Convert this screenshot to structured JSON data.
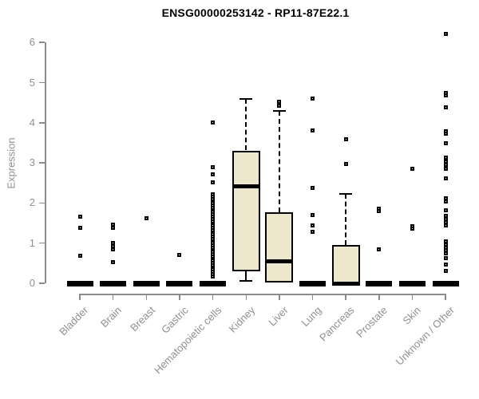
{
  "chart_data": {
    "type": "boxplot",
    "title": "ENSG00000253142 - RP11-87E22.1",
    "ylabel": "Expression",
    "ylim": [
      0,
      6.5
    ],
    "yticks": [
      0,
      1,
      2,
      3,
      4,
      5,
      6
    ],
    "grid": false,
    "legend": null,
    "colors": {
      "box_fill": "#ECE7CD",
      "box_border": "#000000",
      "axis": "#8C8C8C",
      "labels": "#909090",
      "title": "#000000"
    },
    "categories": [
      "Bladder",
      "Brain",
      "Breast",
      "Gastric",
      "Hematopoietic cells",
      "Kidney",
      "Liver",
      "Lung",
      "Pancreas",
      "Prostate",
      "Skin",
      "Unknown / Other"
    ],
    "boxes": [
      {
        "category": "Bladder",
        "q1": 0,
        "median": 0,
        "q3": 0,
        "whisker_low": 0,
        "whisker_high": 0,
        "outliers": [
          1.66,
          1.38,
          0.69
        ]
      },
      {
        "category": "Brain",
        "q1": 0,
        "median": 0,
        "q3": 0,
        "whisker_low": 0,
        "whisker_high": 0,
        "outliers": [
          1.47,
          1.38,
          1.01,
          0.92,
          0.84,
          0.53
        ]
      },
      {
        "category": "Breast",
        "q1": 0,
        "median": 0,
        "q3": 0,
        "whisker_low": 0,
        "whisker_high": 0,
        "outliers": [
          1.62
        ]
      },
      {
        "category": "Gastric",
        "q1": 0,
        "median": 0,
        "q3": 0,
        "whisker_low": 0,
        "whisker_high": 0,
        "outliers": [
          0.71
        ]
      },
      {
        "category": "Hematopoietic cells",
        "q1": 0,
        "median": 0,
        "q3": 0,
        "whisker_low": 0,
        "whisker_high": 0,
        "outliers": [
          4.0,
          2.89,
          2.71,
          2.52,
          2.21,
          2.15,
          2.1,
          2.04,
          1.99,
          1.93,
          1.88,
          1.82,
          1.77,
          1.71,
          1.66,
          1.6,
          1.55,
          1.49,
          1.44,
          1.38,
          1.33,
          1.27,
          1.22,
          1.16,
          1.11,
          1.05,
          1.0,
          0.94,
          0.89,
          0.83,
          0.78,
          0.72,
          0.67,
          0.61,
          0.56,
          0.5,
          0.45,
          0.39,
          0.34,
          0.28,
          0.23,
          0.17
        ]
      },
      {
        "category": "Kidney",
        "q1": 0.3,
        "median": 2.42,
        "q3": 3.31,
        "whisker_low": 0.05,
        "whisker_high": 4.6,
        "outliers": []
      },
      {
        "category": "Liver",
        "q1": 0.02,
        "median": 0.54,
        "q3": 1.76,
        "whisker_low": 0.02,
        "whisker_high": 4.3,
        "outliers": [
          4.52,
          4.42
        ]
      },
      {
        "category": "Lung",
        "q1": 0,
        "median": 0,
        "q3": 0,
        "whisker_low": 0,
        "whisker_high": 0,
        "outliers": [
          4.6,
          3.8,
          2.37,
          1.7,
          1.45,
          1.28
        ]
      },
      {
        "category": "Pancreas",
        "q1": 0,
        "median": 0,
        "q3": 0.96,
        "whisker_low": 0,
        "whisker_high": 2.23,
        "outliers": [
          3.58,
          2.97
        ]
      },
      {
        "category": "Prostate",
        "q1": 0,
        "median": 0,
        "q3": 0,
        "whisker_low": 0,
        "whisker_high": 0,
        "outliers": [
          1.86,
          1.79,
          0.85
        ]
      },
      {
        "category": "Skin",
        "q1": 0,
        "median": 0,
        "q3": 0,
        "whisker_low": 0,
        "whisker_high": 0,
        "outliers": [
          2.85,
          1.43,
          1.36
        ]
      },
      {
        "category": "Unknown / Other",
        "q1": 0,
        "median": 0,
        "q3": 0,
        "whisker_low": 0,
        "whisker_high": 0,
        "outliers": [
          6.22,
          4.75,
          4.68,
          4.39,
          3.79,
          3.72,
          3.48,
          3.13,
          3.03,
          2.95,
          2.86,
          2.62,
          2.12,
          2.04,
          1.82,
          1.68,
          1.6,
          1.52,
          1.44,
          1.04,
          0.96,
          0.89,
          0.82,
          0.74,
          0.63,
          0.46,
          0.3
        ]
      }
    ]
  }
}
